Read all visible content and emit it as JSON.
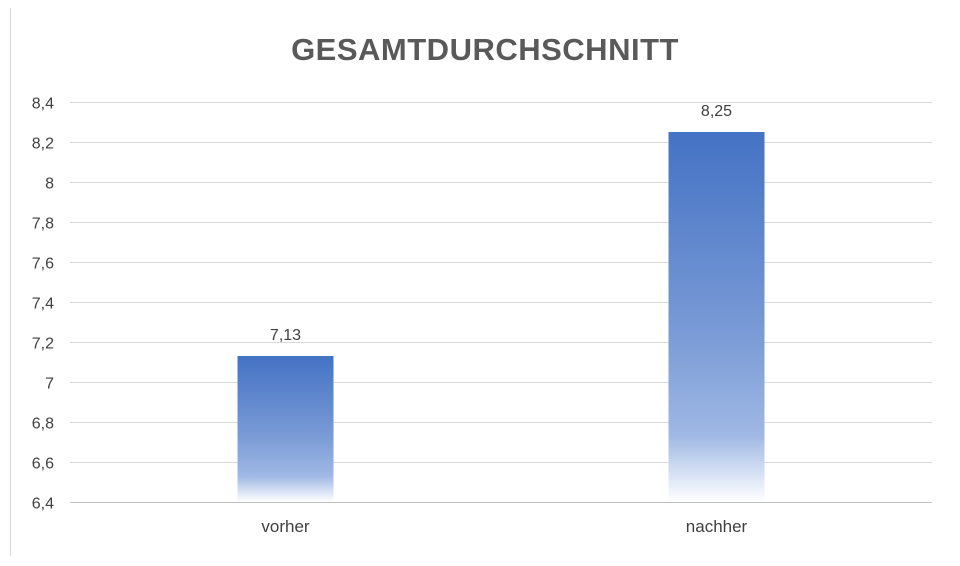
{
  "chart_data": {
    "type": "bar",
    "title": "GESAMTDURCHSCHNITT",
    "categories": [
      "vorher",
      "nachher"
    ],
    "values": [
      7.13,
      8.25
    ],
    "value_labels": [
      "7,13",
      "8,25"
    ],
    "ylim": [
      6.4,
      8.4
    ],
    "yticks": [
      6.4,
      6.6,
      6.8,
      7,
      7.2,
      7.4,
      7.6,
      7.8,
      8,
      8.2,
      8.4
    ],
    "ytick_labels": [
      "6,4",
      "6,6",
      "6,8",
      "7",
      "7,2",
      "7,4",
      "7,6",
      "7,8",
      "8",
      "8,2",
      "8,4"
    ],
    "xlabel": "",
    "ylabel": "",
    "grid": true,
    "legend": "none",
    "bar_color": "#4472C4",
    "bar_fill": "vertical gradient fading to white at the bottom"
  }
}
